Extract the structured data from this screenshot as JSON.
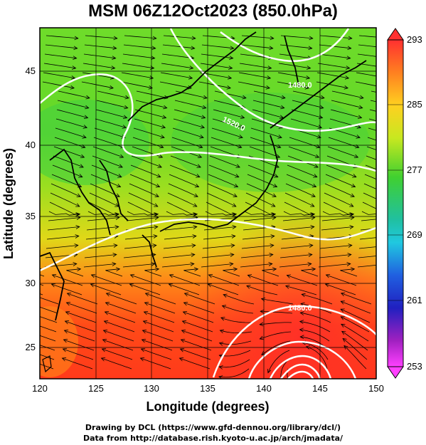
{
  "title": "MSM 06Z12Oct2023 (850.0hPa)",
  "x_axis": {
    "label": "Longitude (degrees)",
    "ticks": [
      "120",
      "125",
      "130",
      "135",
      "140",
      "145",
      "150"
    ]
  },
  "y_axis": {
    "label": "Latitude  (degrees)",
    "ticks": [
      "25",
      "30",
      "35",
      "40",
      "45"
    ]
  },
  "colorbar": {
    "ticks": [
      "293",
      "285",
      "277",
      "269",
      "261",
      "253"
    ]
  },
  "contour_labels": [
    "1480.0",
    "1520.0",
    "1480.0"
  ],
  "credits": {
    "line1": "Drawing by DCL (https://www.gfd-dennou.org/library/dcl/)",
    "line2": "Data from http://database.rish.kyoto-u.ac.jp/arch/jmadata/"
  },
  "colors": {
    "warm": "#ff3a1a",
    "mid": "#9adf1c",
    "cool": "#2fd04a",
    "cold": "#1010c0",
    "coldest": "#ff40ff"
  }
}
